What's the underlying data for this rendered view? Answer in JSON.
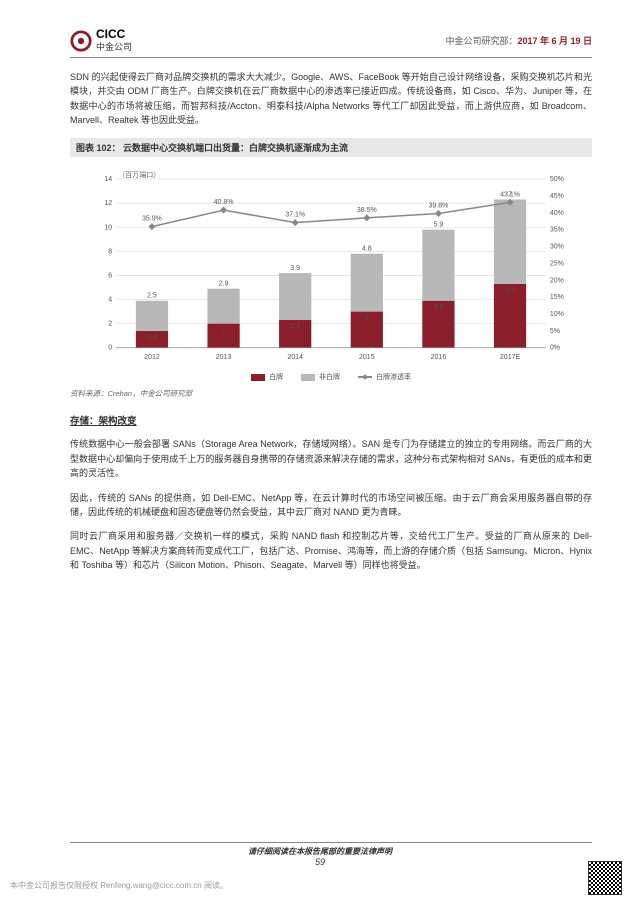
{
  "header": {
    "logo_en": "CICC",
    "logo_cn": "中金公司",
    "right_prefix": "中金公司研究部：",
    "date": "2017 年 6 月 19 日"
  },
  "para1": "SDN 的兴起使得云厂商对品牌交换机的需求大大减少。Google、AWS、FaceBook 等开始自己设计网络设备，采购交换机芯片和光模块，并交由 ODM 厂商生产。白牌交换机在云厂商数据中心的渗透率已接近四成。传统设备商，如 Cisco、华为、Juniper 等，在数据中心的市场将被压缩，而智邦科技/Accton、明泰科技/Alpha Networks 等代工厂却因此受益，而上游供应商，如 Broadcom、Marvell、Realtek 等也因此受益。",
  "fig_title": "图表 102： 云数据中心交换机端口出货量：白牌交换机逐渐成为主流",
  "chart": {
    "type": "bar_stacked_line",
    "unit_left": "（百万端口）",
    "categories": [
      "2012",
      "2013",
      "2014",
      "2015",
      "2016",
      "2017E"
    ],
    "red_values": [
      1.4,
      2.0,
      2.3,
      3.0,
      3.9,
      5.3
    ],
    "grey_values": [
      2.5,
      2.9,
      3.9,
      4.8,
      5.9,
      7.0
    ],
    "line_pct": [
      35.9,
      40.8,
      37.1,
      38.5,
      39.8,
      43.1
    ],
    "y_left_max": 14,
    "y_left_step": 2,
    "y_right_max": 50,
    "y_right_step": 5,
    "colors": {
      "red": "#8a1e2b",
      "grey": "#b8b8b8",
      "line": "#888888",
      "grid": "#d0d0d0",
      "bg": "#ffffff"
    },
    "legend": [
      "白牌",
      "非白牌",
      "白牌渗透率"
    ]
  },
  "source": "资料来源：Crehan，中金公司研究部",
  "section_title": "存储：架构改变",
  "para2": "传统数据中心一般会部署 SANs（Storage Area Network，存储域网络）。SAN 是专门为存储建立的独立的专用网络。而云厂商的大型数据中心却偏向于使用成千上万的服务器自身携带的存储资源来解决存储的需求，这种分布式架构相对 SANs，有更低的成本和更高的灵活性。",
  "para3": "因此，传统的 SANs 的提供商，如 Dell-EMC、NetApp 等，在云计算时代的市场空间被压缩。由于云厂商会采用服务器自带的存储，因此传统的机械硬盘和固态硬盘等仍然会受益，其中云厂商对 NAND 更为青睐。",
  "para4": "同时云厂商采用和服务器／交换机一样的模式，采购 NAND flash 和控制芯片等，交给代工厂生产。受益的厂商从原来的 Dell-EMC、NetApp 等解决方案商转而变成代工厂，包括广达、Promise、鸿海等，而上游的存储介质（包括 Samsung、Micron、Hynix 和 Toshiba 等）和芯片（Silicon Motion、Phison、Seagate、Marvell 等）同样也将受益。",
  "footer": {
    "disclaimer": "请仔细阅读在本报告尾部的重要法律声明",
    "page": "59"
  },
  "watermark": "本中金公司报告仅限授权 Renfeng.wang@cicc.com.cn 阅读。"
}
